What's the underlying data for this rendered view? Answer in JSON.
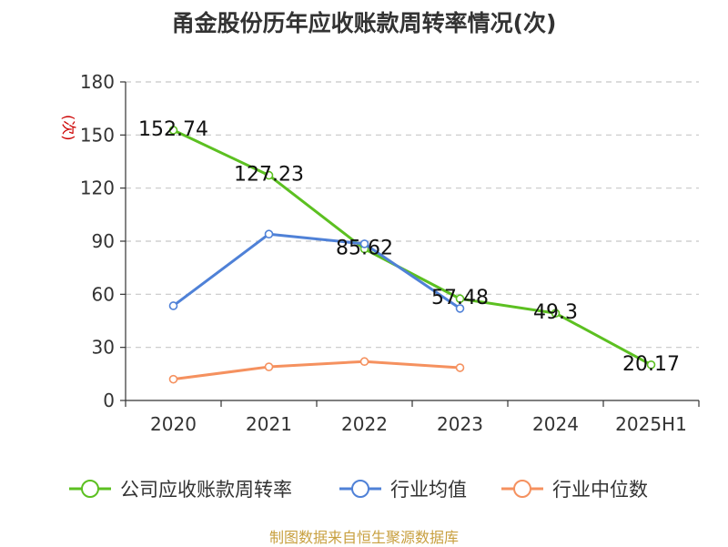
{
  "chart_data": {
    "type": "line",
    "title": "甬金股份历年应收账款周转率情况(次)",
    "ylabel": "(次)",
    "xlabel": "",
    "categories": [
      "2020",
      "2021",
      "2022",
      "2023",
      "2024",
      "2025H1"
    ],
    "ylim": [
      0,
      180
    ],
    "yticks": [
      0,
      30,
      60,
      90,
      120,
      150,
      180
    ],
    "grid": true,
    "legend_position": "bottom",
    "series": [
      {
        "name": "公司应收账款周转率",
        "color": "#5cc021",
        "values": [
          152.74,
          127.23,
          85.62,
          57.48,
          49.3,
          20.17
        ],
        "labels": [
          "152.74",
          "127.23",
          "85.62",
          "57.48",
          "49.3",
          "20.17"
        ]
      },
      {
        "name": "行业均值",
        "color": "#4f81d7",
        "values": [
          53.5,
          94,
          88.5,
          52,
          null,
          null
        ]
      },
      {
        "name": "行业中位数",
        "color": "#f5915f",
        "values": [
          12,
          19,
          22,
          18.5,
          null,
          null
        ]
      }
    ],
    "source": "制图数据来自恒生聚源数据库"
  }
}
